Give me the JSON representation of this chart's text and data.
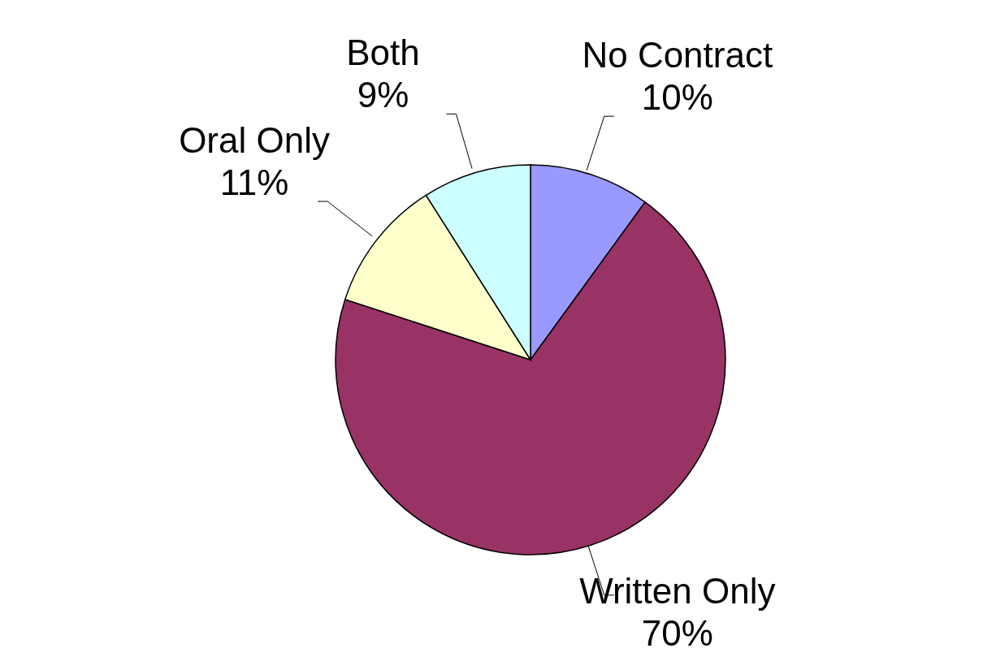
{
  "chart_data": {
    "type": "pie",
    "categories": [
      "No Contract",
      "Written Only",
      "Oral Only",
      "Both"
    ],
    "values": [
      10,
      70,
      11,
      9
    ],
    "colors": [
      "#9999ff",
      "#993366",
      "#ffffcc",
      "#ccffff"
    ],
    "value_labels": [
      "10%",
      "70%",
      "11%",
      "9%"
    ]
  }
}
